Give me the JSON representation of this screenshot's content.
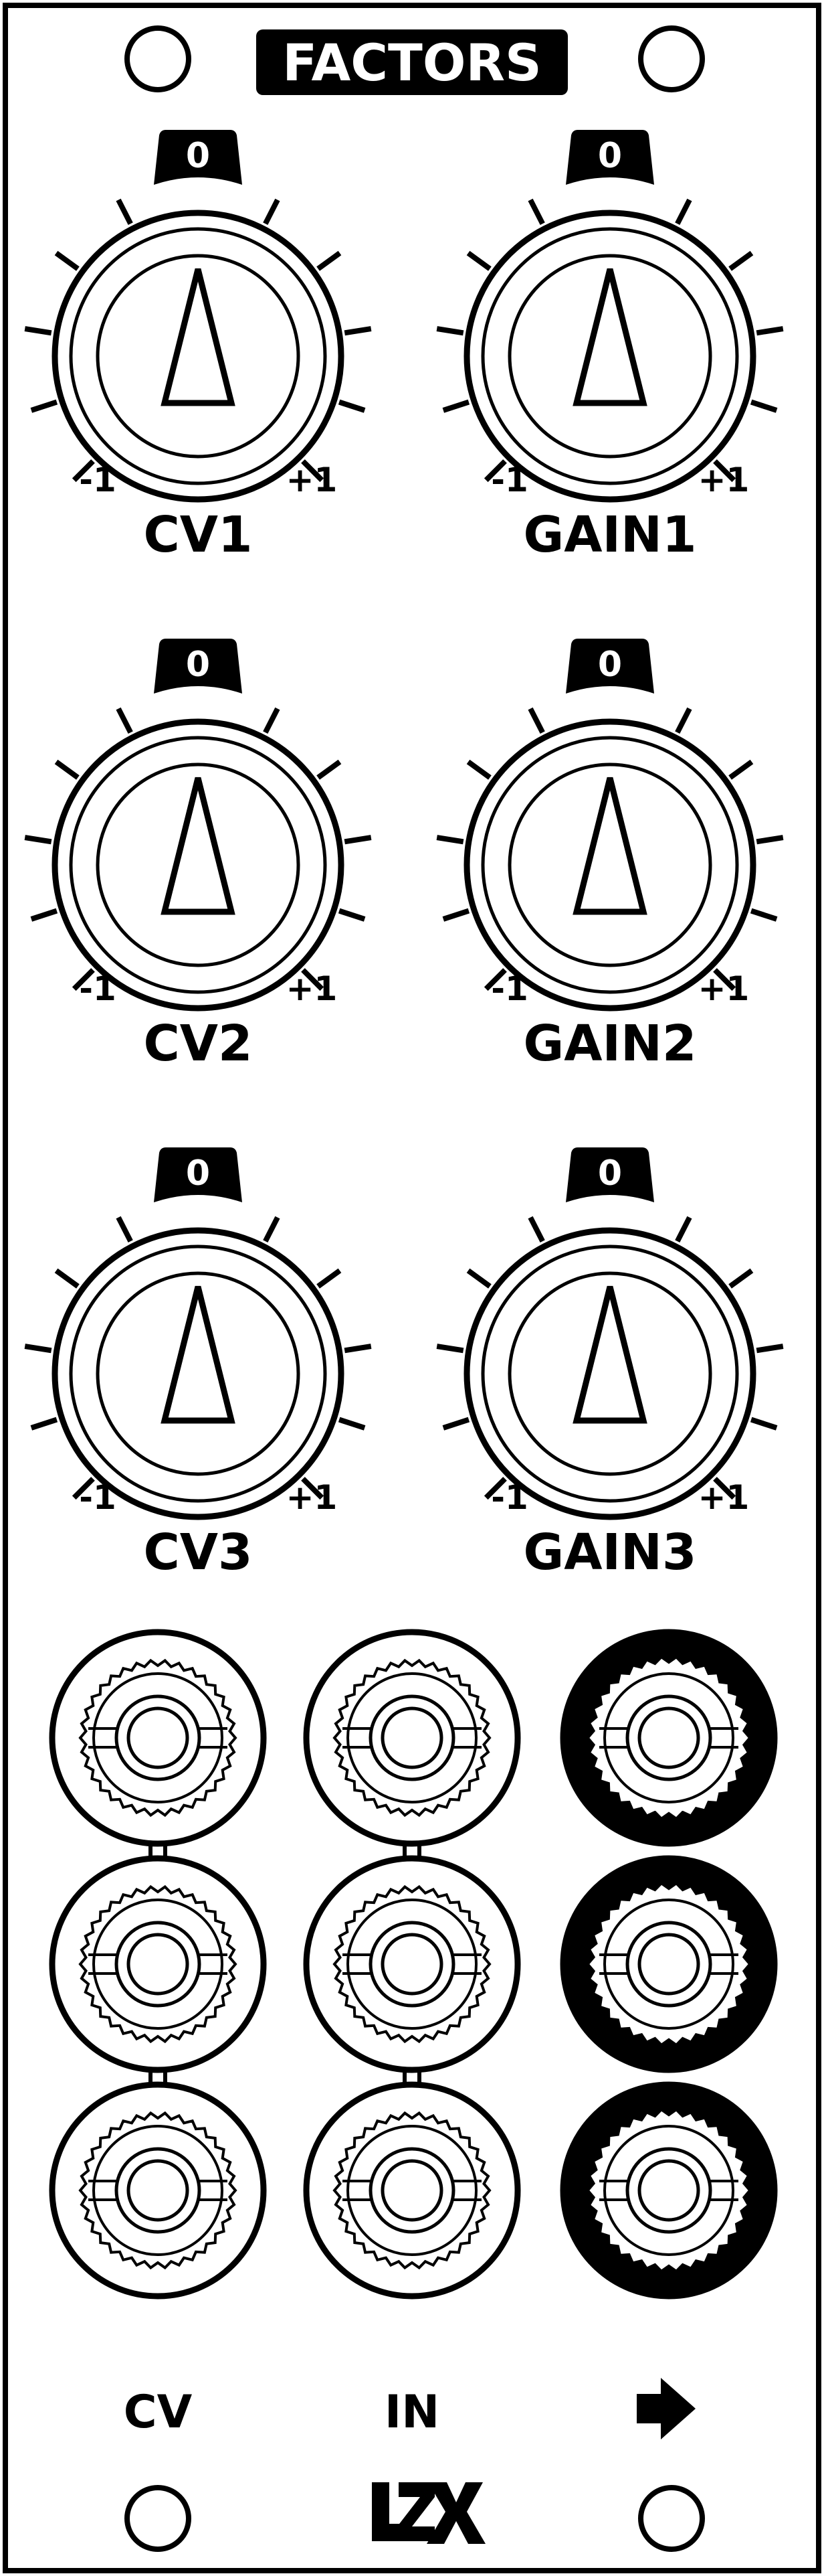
{
  "module": {
    "title": "FACTORS",
    "brand_logo_text": "LZX",
    "panel_color": "#ffffff",
    "ink_color": "#000000"
  },
  "knobs": [
    {
      "label": "CV1",
      "top_marker": "0",
      "min_label": "-1",
      "max_label": "+1"
    },
    {
      "label": "GAIN1",
      "top_marker": "0",
      "min_label": "-1",
      "max_label": "+1"
    },
    {
      "label": "CV2",
      "top_marker": "0",
      "min_label": "-1",
      "max_label": "+1"
    },
    {
      "label": "GAIN2",
      "top_marker": "0",
      "min_label": "-1",
      "max_label": "+1"
    },
    {
      "label": "CV3",
      "top_marker": "0",
      "min_label": "-1",
      "max_label": "+1"
    },
    {
      "label": "GAIN3",
      "top_marker": "0",
      "min_label": "-1",
      "max_label": "+1"
    }
  ],
  "jack_columns": [
    {
      "label": "CV",
      "jack_type": "input",
      "normalled": true
    },
    {
      "label": "IN",
      "jack_type": "input",
      "normalled": true
    },
    {
      "label": "",
      "label_icon": "right-arrow-icon",
      "jack_type": "output",
      "normalled": false
    }
  ]
}
